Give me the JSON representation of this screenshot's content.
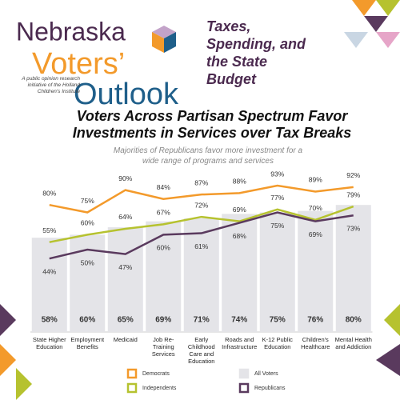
{
  "header": {
    "brand": [
      "Nebraska",
      "Voters’",
      "Outlook"
    ],
    "tagline": "A public opinion research initiative of the Holland Children's Institute",
    "topic": "Taxes, Spending, and the State Budget"
  },
  "chart_data": {
    "type": "bar-line",
    "title": "Voters Across Partisan Spectrum Favor Investments in Services over Tax Breaks",
    "subtitle": "Majorities of Republicans favor more investment for a wide range of programs and services",
    "categories": [
      "State Higher Education",
      "Employment Benefits",
      "Medicaid",
      "Job Re-Training Services",
      "Early Childhood Care and Education",
      "Roads and Infrastructure",
      "K-12 Public Education",
      "Children's Healthcare",
      "Mental Health and Addiction"
    ],
    "series": [
      {
        "name": "All Voters",
        "kind": "bar",
        "color": "#e4e4e8",
        "values": [
          58,
          60,
          65,
          69,
          71,
          74,
          75,
          76,
          80
        ],
        "value_labels": [
          "58%",
          "60%",
          "65%",
          "69%",
          "71%",
          "74%",
          "75%",
          "76%",
          "80%"
        ]
      },
      {
        "name": "Democrats",
        "kind": "line",
        "color": "#f39a2b",
        "values": [
          80,
          75,
          90,
          84,
          87,
          88,
          93,
          89,
          92
        ],
        "value_labels": [
          "80%",
          "75%",
          "90%",
          "84%",
          "87%",
          "88%",
          "93%",
          "89%",
          "92%"
        ]
      },
      {
        "name": "Independents",
        "kind": "line",
        "color": "#b6c22f",
        "values": [
          55,
          60,
          64,
          67,
          72,
          69,
          77,
          70,
          79
        ],
        "value_labels": [
          "55%",
          "60%",
          "64%",
          "67%",
          "72%",
          "69%",
          "77%",
          "70%",
          "79%"
        ]
      },
      {
        "name": "Republicans",
        "kind": "line",
        "color": "#5a3a5e",
        "values": [
          44,
          50,
          47,
          60,
          61,
          68,
          75,
          69,
          73
        ],
        "value_labels": [
          "44%",
          "50%",
          "47%",
          "60%",
          "61%",
          "68%",
          "75%",
          "69%",
          "73%"
        ]
      }
    ]
  }
}
